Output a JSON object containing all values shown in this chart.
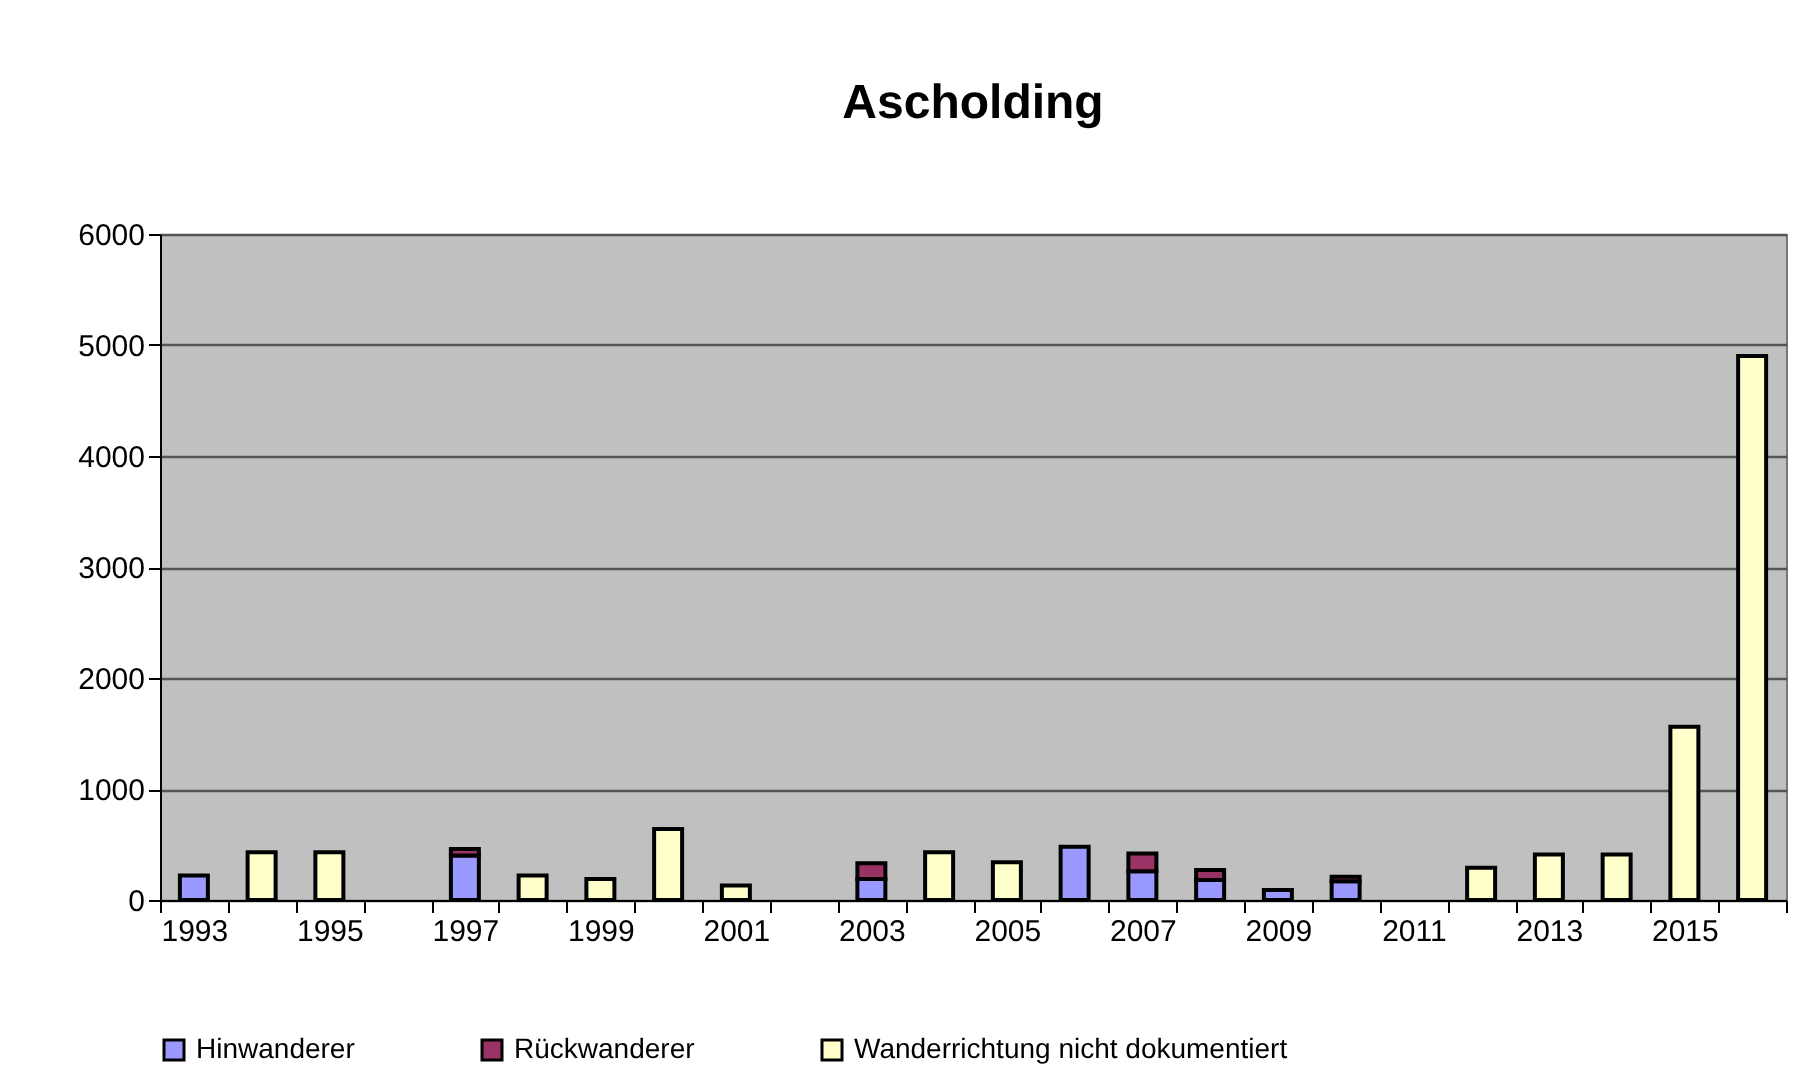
{
  "chart_data": {
    "type": "bar",
    "title": "Ascholding",
    "stacked": true,
    "categories": [
      "1993",
      null,
      "1995",
      null,
      "1997",
      null,
      "1999",
      null,
      "2001",
      null,
      "2003",
      null,
      "2005",
      null,
      "2007",
      null,
      "2009",
      null,
      "2011",
      null,
      "2013",
      null,
      "2015",
      null
    ],
    "series": [
      {
        "name": "Hinwanderer",
        "color": "#9999ff",
        "values": [
          220,
          null,
          null,
          null,
          400,
          null,
          null,
          null,
          null,
          null,
          190,
          null,
          null,
          480,
          260,
          180,
          90,
          170,
          null,
          null,
          null,
          null,
          null,
          null
        ]
      },
      {
        "name": "Rückwanderer",
        "color": "#993366",
        "values": [
          null,
          null,
          null,
          null,
          60,
          null,
          null,
          null,
          null,
          null,
          140,
          null,
          null,
          null,
          160,
          90,
          null,
          40,
          null,
          null,
          null,
          null,
          null,
          null
        ]
      },
      {
        "name": "Wanderrichtung nicht dokumentiert",
        "color": "#ffffcc",
        "values": [
          null,
          430,
          430,
          null,
          null,
          220,
          190,
          640,
          130,
          null,
          null,
          430,
          340,
          null,
          null,
          null,
          null,
          null,
          null,
          290,
          410,
          410,
          1560,
          4900
        ]
      }
    ],
    "ylim": [
      0,
      6000
    ],
    "yticks": [
      0,
      1000,
      2000,
      3000,
      4000,
      5000,
      6000
    ],
    "grid": "y",
    "legend": "bottom"
  }
}
